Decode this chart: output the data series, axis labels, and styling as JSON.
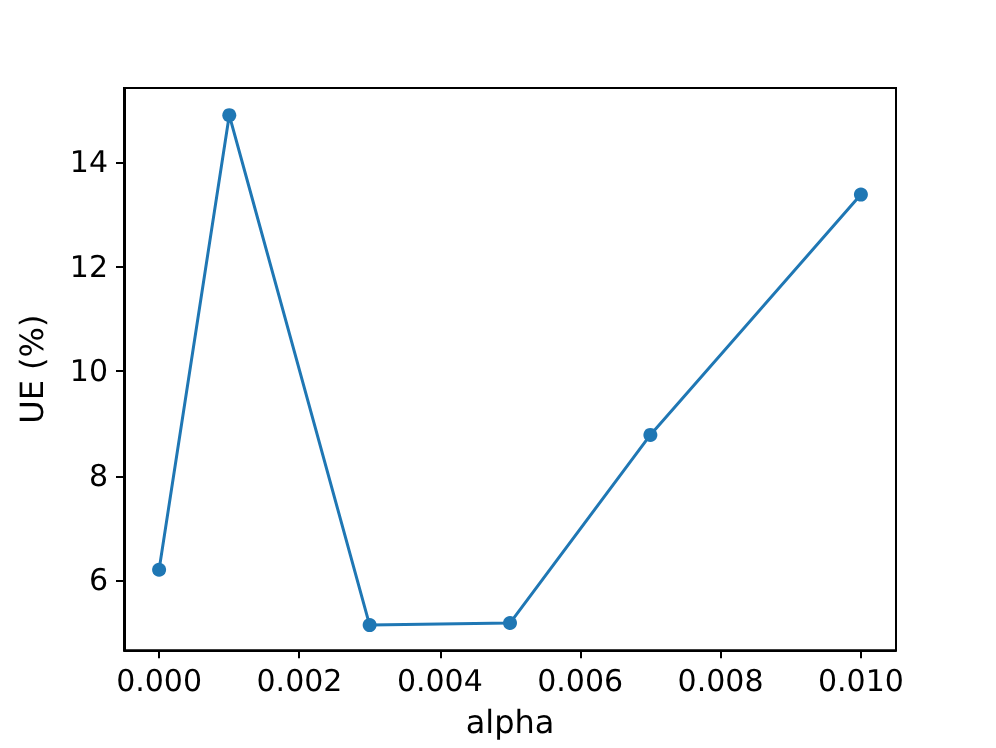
{
  "chart_data": {
    "type": "line",
    "xlabel": "alpha",
    "ylabel": "UE (%)",
    "x": [
      0,
      0.001,
      0.003,
      0.005,
      0.007,
      0.01
    ],
    "series": [
      {
        "color": "#1f77b4",
        "values": [
          6.2,
          14.9,
          5.14,
          5.18,
          8.78,
          13.38
        ]
      }
    ],
    "xlim": [
      -0.0005,
      0.0105
    ],
    "xticks": [
      {
        "value": 0,
        "label": "0.000"
      },
      {
        "value": 0.002,
        "label": "0.002"
      },
      {
        "value": 0.004,
        "label": "0.004"
      },
      {
        "value": 0.006,
        "label": "0.006"
      },
      {
        "value": 0.008,
        "label": "0.008"
      },
      {
        "value": 0.01,
        "label": "0.010"
      }
    ],
    "ylim": [
      4.66,
      15.42
    ],
    "yticks": [
      6,
      8,
      10,
      12,
      14
    ],
    "grid": false,
    "marker": "circle",
    "line_style": "solid"
  }
}
